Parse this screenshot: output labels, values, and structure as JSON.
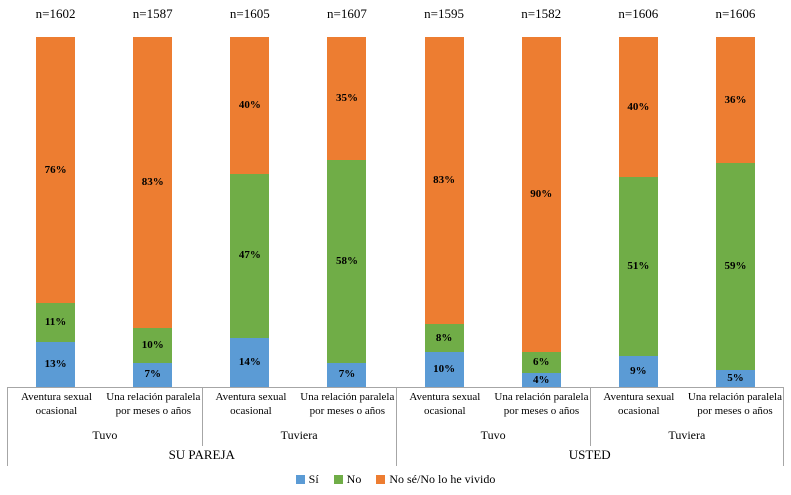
{
  "chart_data": {
    "type": "bar",
    "subtype": "100%-stacked-vertical",
    "unit": "%",
    "y_axis_hidden": true,
    "ylim": [
      0,
      100
    ],
    "stack_order_bottom_to_top": [
      "Sí",
      "No",
      "No sé/No lo he vivido"
    ],
    "colors": {
      "Sí": "#5B9BD5",
      "No": "#70AD47",
      "No sé/No lo he vivido": "#ED7D31"
    },
    "legend": [
      "Sí",
      "No",
      "No sé/No lo he vivido"
    ],
    "groups": [
      {
        "subject": "SU PAREJA",
        "tenses": [
          {
            "tense": "Tuvo",
            "bars": [
              {
                "category": "Aventura sexual ocasional",
                "n": "n=1602",
                "values": [
                  13,
                  11,
                  76
                ]
              },
              {
                "category": "Una relación paralela por meses o años",
                "n": "n=1587",
                "values": [
                  7,
                  10,
                  83
                ]
              }
            ]
          },
          {
            "tense": "Tuviera",
            "bars": [
              {
                "category": "Aventura sexual ocasional",
                "n": "n=1605",
                "values": [
                  14,
                  47,
                  40
                ]
              },
              {
                "category": "Una relación paralela por meses o años",
                "n": "n=1607",
                "values": [
                  7,
                  58,
                  35
                ]
              }
            ]
          }
        ]
      },
      {
        "subject": "USTED",
        "tenses": [
          {
            "tense": "Tuvo",
            "bars": [
              {
                "category": "Aventura sexual ocasional",
                "n": "n=1595",
                "values": [
                  10,
                  8,
                  83
                ]
              },
              {
                "category": "Una relación paralela por meses o años",
                "n": "n=1582",
                "values": [
                  4,
                  6,
                  90
                ]
              }
            ]
          },
          {
            "tense": "Tuviera",
            "bars": [
              {
                "category": "Aventura sexual ocasional",
                "n": "n=1606",
                "values": [
                  9,
                  51,
                  40
                ]
              },
              {
                "category": "Una relación paralela por meses o años",
                "n": "n=1606",
                "values": [
                  5,
                  59,
                  36
                ]
              }
            ]
          }
        ]
      }
    ]
  }
}
